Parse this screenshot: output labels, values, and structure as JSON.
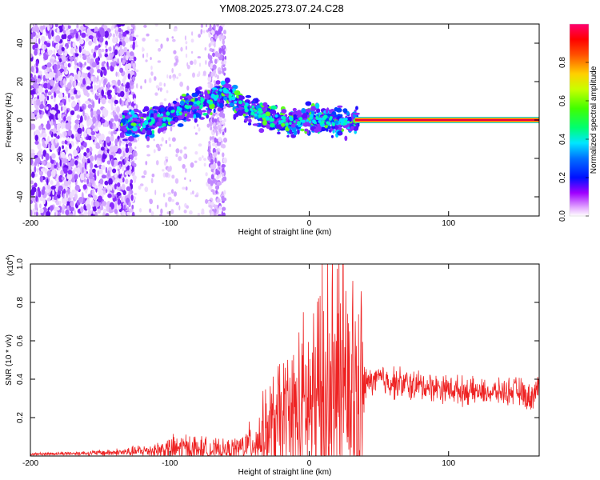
{
  "title": "YM08.2025.273.07.24.C28",
  "chart_data": [
    {
      "type": "heatmap",
      "xlabel": "Height of straight line (km)",
      "ylabel": "Frequency (Hz)",
      "xlim": [
        -200,
        165
      ],
      "ylim": [
        -50,
        50
      ],
      "xticks": [
        -200,
        -100,
        0,
        100
      ],
      "yticks": [
        -40,
        -20,
        0,
        20,
        40
      ],
      "colorbar": {
        "label": "Normalized spectral amplitude",
        "range": [
          0,
          1
        ],
        "ticks": [
          "0.0",
          "0.2",
          "0.4",
          "0.6",
          "0.8"
        ]
      },
      "peak_track": {
        "x": [
          -130,
          -120,
          -110,
          -100,
          -90,
          -80,
          -70,
          -60,
          -50,
          -40,
          -30,
          -20,
          -10,
          0,
          10,
          20,
          30,
          40,
          60,
          80,
          100,
          120,
          140,
          160
        ],
        "y": [
          -3,
          -2,
          0,
          2,
          5,
          8,
          11,
          14,
          8,
          5,
          2,
          0,
          -1,
          1,
          0,
          -1,
          -1,
          0,
          0,
          0,
          0,
          0,
          0,
          0
        ]
      }
    },
    {
      "type": "line",
      "xlabel": "Height of straight line (km)",
      "ylabel": "SNR (10 * v/v)",
      "y_multiplier": "(x10",
      "y_multiplier_exp": "4",
      "xlim": [
        -200,
        165
      ],
      "ylim": [
        0,
        1.0
      ],
      "xticks": [
        -200,
        -100,
        0,
        100
      ],
      "yticks": [
        "0.2",
        "0.4",
        "0.6",
        "0.8",
        "1.0"
      ],
      "series": [
        {
          "name": "SNR",
          "color": "#ee2222",
          "envelope_x": [
            -200,
            -160,
            -130,
            -110,
            -90,
            -70,
            -60,
            -50,
            -40,
            -30,
            -20,
            -10,
            0,
            10,
            20,
            30,
            38,
            41,
            50,
            70,
            90,
            110,
            130,
            150,
            158,
            165
          ],
          "envelope_base": [
            0.01,
            0.015,
            0.02,
            0.03,
            0.04,
            0.03,
            0.03,
            0.04,
            0.07,
            0.12,
            0.18,
            0.2,
            0.24,
            0.28,
            0.3,
            0.3,
            0.3,
            0.38,
            0.4,
            0.37,
            0.36,
            0.34,
            0.33,
            0.34,
            0.3,
            0.36
          ],
          "envelope_amp": [
            0.005,
            0.01,
            0.02,
            0.04,
            0.07,
            0.05,
            0.04,
            0.06,
            0.1,
            0.2,
            0.3,
            0.35,
            0.45,
            0.55,
            0.65,
            0.55,
            0.45,
            0.05,
            0.07,
            0.07,
            0.06,
            0.06,
            0.05,
            0.06,
            0.06,
            0.06
          ]
        }
      ]
    }
  ]
}
